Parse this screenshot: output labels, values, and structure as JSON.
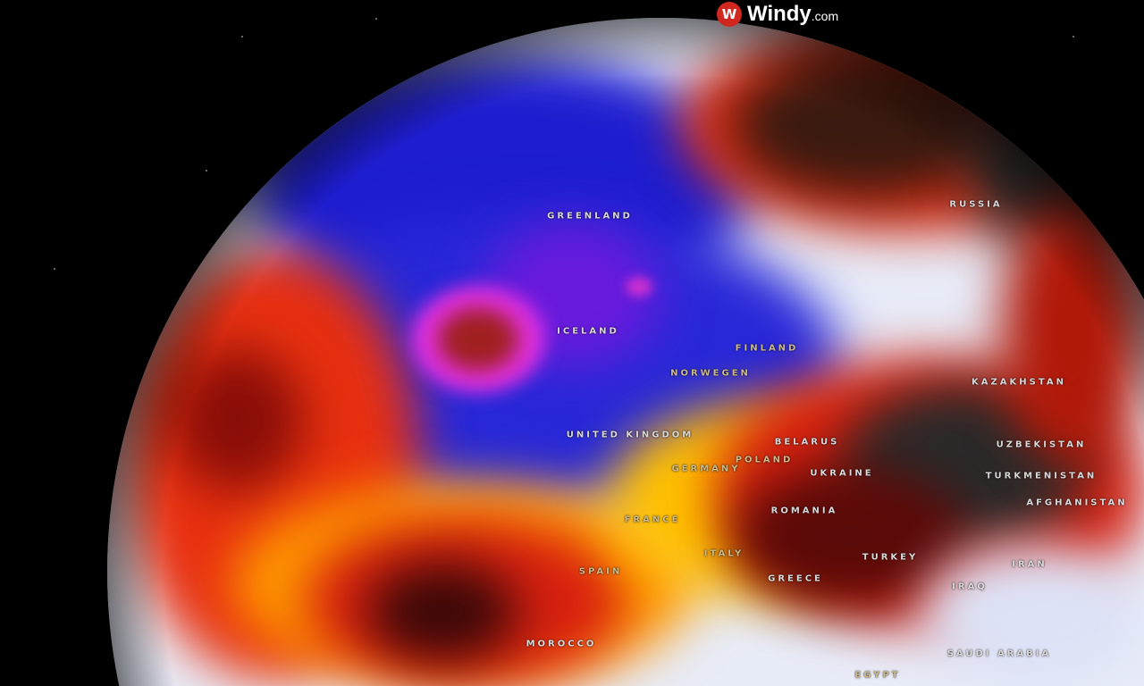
{
  "brand": {
    "name": "Windy",
    "suffix": ".com",
    "icon": "windy-logo-icon",
    "color": "#d0281f"
  },
  "map": {
    "layer_colors": {
      "cold": "#1a1acc",
      "very_cold": "#d020d0",
      "neutral": "#e8ecf8",
      "warm": "#ffd000",
      "hot": "#e02000",
      "extreme": "#333333"
    },
    "labels": [
      "GREENLAND",
      "ICELAND",
      "FINLAND",
      "NORWEGEN",
      "UNITED KINGDOM",
      "BELARUS",
      "POLAND",
      "GERMANY",
      "UKRAINE",
      "ROMANIA",
      "FRANCE",
      "ITALY",
      "SPAIN",
      "GREECE",
      "TURKEY",
      "IRAQ",
      "IRAN",
      "RUSSIA",
      "KAZAKHSTAN",
      "UZBEKISTAN",
      "TURKMENISTAN",
      "AFGHANISTAN",
      "SAUDI ARABIA",
      "EGYPT",
      "MOROCCO"
    ]
  }
}
